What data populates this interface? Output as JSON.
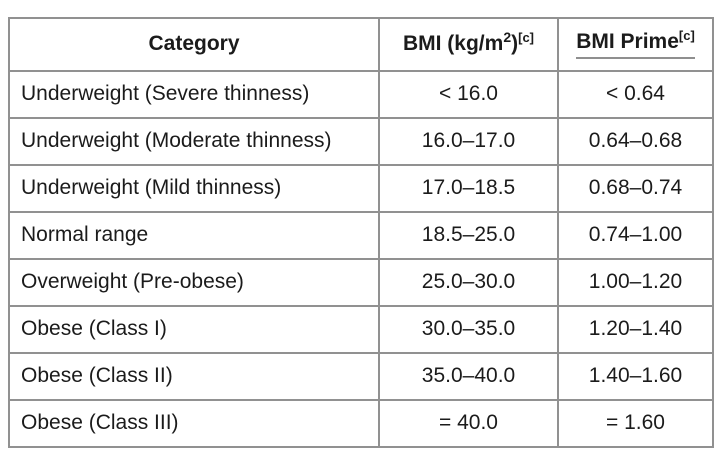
{
  "page": {
    "background": "#ffffff"
  },
  "colors": {
    "text": "#1b1b1b",
    "border_inner": "#919191",
    "border_outer": "#7d7d7d",
    "prime_underline": "#8f8f8f"
  },
  "table": {
    "header": {
      "category": "Category",
      "bmi_label": "BMI (kg/m",
      "bmi_sup": "2",
      "bmi_close": ")",
      "bmi_ref": "[c]",
      "prime_label": "BMI Prime",
      "prime_ref": "[c]"
    },
    "rows": [
      {
        "category": "Underweight (Severe thinness)",
        "bmi": "< 16.0",
        "prime": "< 0.64"
      },
      {
        "category": "Underweight (Moderate thinness)",
        "bmi": "16.0–17.0",
        "prime": "0.64–0.68"
      },
      {
        "category": "Underweight (Mild thinness)",
        "bmi": "17.0–18.5",
        "prime": "0.68–0.74"
      },
      {
        "category": "Normal range",
        "bmi": "18.5–25.0",
        "prime": "0.74–1.00"
      },
      {
        "category": "Overweight (Pre-obese)",
        "bmi": "25.0–30.0",
        "prime": "1.00–1.20"
      },
      {
        "category": "Obese (Class I)",
        "bmi": "30.0–35.0",
        "prime": "1.20–1.40"
      },
      {
        "category": "Obese (Class II)",
        "bmi": "35.0–40.0",
        "prime": "1.40–1.60"
      },
      {
        "category": "Obese (Class III)",
        "bmi": "= 40.0",
        "prime": "= 1.60"
      }
    ]
  }
}
